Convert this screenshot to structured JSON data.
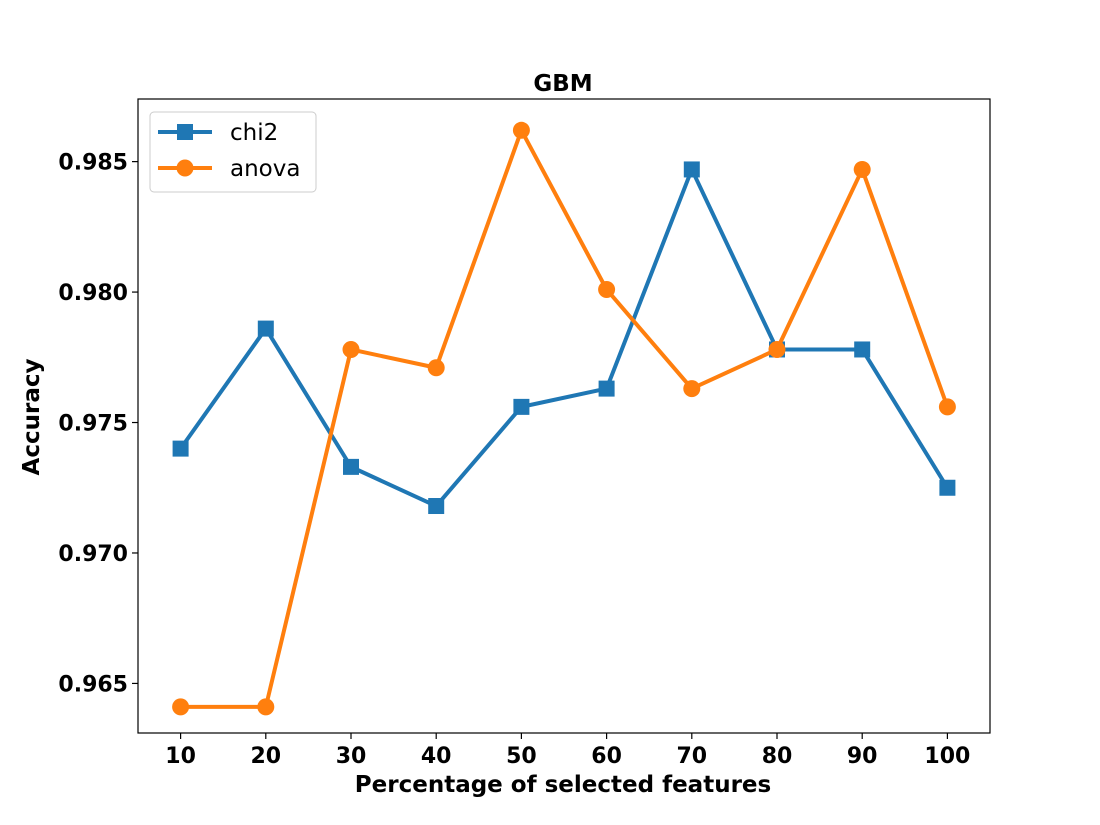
{
  "chart_data": {
    "type": "line",
    "title": "GBM",
    "xlabel": "Percentage of selected features",
    "ylabel": "Accuracy",
    "x": [
      10,
      20,
      30,
      40,
      50,
      60,
      70,
      80,
      90,
      100
    ],
    "xticks": [
      "10",
      "20",
      "30",
      "40",
      "50",
      "60",
      "70",
      "80",
      "90",
      "100"
    ],
    "yticks": [
      "0.965",
      "0.970",
      "0.975",
      "0.980",
      "0.985"
    ],
    "ytick_values": [
      0.965,
      0.97,
      0.975,
      0.98,
      0.985
    ],
    "xlim": [
      5,
      105
    ],
    "ylim": [
      0.9631,
      0.9874
    ],
    "grid": false,
    "legend_position": "top-left",
    "series": [
      {
        "name": "chi2",
        "color": "#1f77b4",
        "marker": "square",
        "values": [
          0.974,
          0.9786,
          0.9733,
          0.9718,
          0.9756,
          0.9763,
          0.9847,
          0.9778,
          0.9778,
          0.9725
        ]
      },
      {
        "name": "anova",
        "color": "#ff7f0e",
        "marker": "circle",
        "values": [
          0.9641,
          0.9641,
          0.9778,
          0.9771,
          0.9862,
          0.9801,
          0.9763,
          0.9778,
          0.9847,
          0.9756
        ]
      }
    ]
  }
}
